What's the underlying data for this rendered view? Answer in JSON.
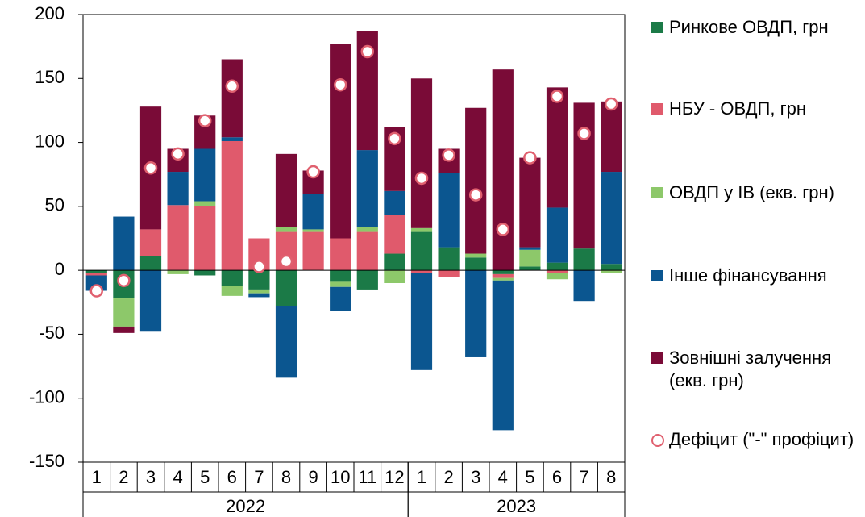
{
  "chart_data": {
    "type": "bar",
    "groups": [
      {
        "label": "2022",
        "categories": [
          "1",
          "2",
          "3",
          "4",
          "5",
          "6",
          "7",
          "8",
          "9",
          "10",
          "11",
          "12"
        ]
      },
      {
        "label": "2023",
        "categories": [
          "1",
          "2",
          "3",
          "4",
          "5",
          "6",
          "7",
          "8"
        ]
      }
    ],
    "series": [
      {
        "name": "Ринкове ОВДП, грн",
        "color": "#1b7a47",
        "mark": "bar",
        "values": [
          -2,
          -22,
          11,
          0,
          -4,
          -12,
          -15,
          -28,
          0,
          -9,
          -15,
          13,
          30,
          18,
          10,
          -3,
          3,
          6,
          17,
          5
        ]
      },
      {
        "name": "НБУ - ОВДП, грн",
        "color": "#e05a6c",
        "mark": "bar",
        "values": [
          -2,
          0,
          21,
          51,
          50,
          101,
          25,
          30,
          30,
          25,
          30,
          30,
          -2,
          -5,
          0,
          -3,
          0,
          -2,
          0,
          0
        ]
      },
      {
        "name": "ОВДП у ІВ (екв. грн)",
        "color": "#8dc86a",
        "mark": "bar",
        "values": [
          0,
          -22,
          0,
          -3,
          4,
          -8,
          -3,
          4,
          2,
          -4,
          4,
          -10,
          3,
          0,
          3,
          -2,
          13,
          -5,
          0,
          -2
        ]
      },
      {
        "name": "Інше фінансування",
        "color": "#0b5690",
        "mark": "bar",
        "values": [
          -12,
          42,
          -48,
          26,
          41,
          3,
          -3,
          -56,
          28,
          -19,
          60,
          19,
          -76,
          58,
          -68,
          -117,
          2,
          43,
          -24,
          72
        ]
      },
      {
        "name": "Зовнішні залучення (екв. грн)",
        "color": "#7a0b37",
        "mark": "bar",
        "values": [
          0,
          -5,
          96,
          18,
          26,
          61,
          0,
          57,
          18,
          152,
          93,
          50,
          117,
          19,
          114,
          157,
          70,
          94,
          114,
          55
        ]
      },
      {
        "name": "Дефіцит (\"-\" профіцит)",
        "color": "#e0606f",
        "mark": "circle",
        "values": [
          -16,
          -8,
          80,
          91,
          117,
          144,
          3,
          7,
          77,
          145,
          171,
          103,
          72,
          90,
          59,
          32,
          88,
          136,
          107,
          130
        ]
      }
    ],
    "ylim": [
      -150,
      200
    ],
    "yticks": [
      -150,
      -100,
      -50,
      0,
      50,
      100,
      150,
      200
    ],
    "grid": false
  }
}
